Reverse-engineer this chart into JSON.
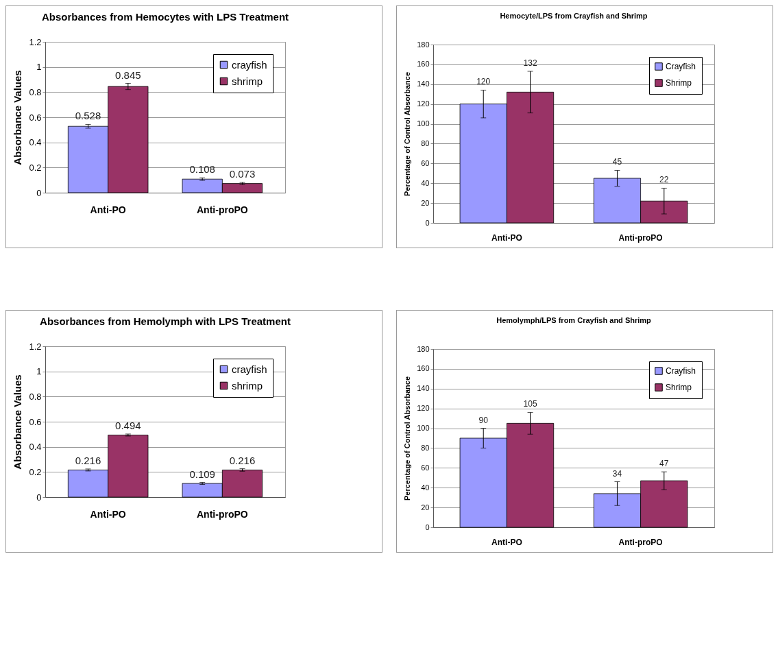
{
  "chart_data": [
    {
      "type": "bar",
      "title": "Absorbances from Hemocytes with LPS Treatment",
      "ylabel": "Absorbance Values",
      "categories": [
        "Anti-PO",
        "Anti-proPO"
      ],
      "series": [
        {
          "name": "crayfish",
          "color": "#9999ff",
          "values": [
            0.528,
            0.108
          ],
          "errors": [
            0.015,
            0.01
          ]
        },
        {
          "name": "shrimp",
          "color": "#993366",
          "values": [
            0.845,
            0.073
          ],
          "errors": [
            0.025,
            0.008
          ]
        }
      ],
      "ylim": [
        0,
        1.2
      ],
      "yticks": [
        0,
        0.2,
        0.4,
        0.6,
        0.8,
        1,
        1.2
      ],
      "grid": "y",
      "legend": "top right",
      "data_labels": true
    },
    {
      "type": "bar",
      "title": "Hemocyte/LPS from Crayfish and Shrimp",
      "ylabel": "Percentage of Control Absorbance",
      "categories": [
        "Anti-PO",
        "Anti-proPO"
      ],
      "series": [
        {
          "name": "Crayfish",
          "color": "#9999ff",
          "values": [
            120,
            45
          ],
          "errors": [
            14,
            8
          ]
        },
        {
          "name": "Shrimp",
          "color": "#993366",
          "values": [
            132,
            22
          ],
          "errors": [
            21,
            13
          ]
        }
      ],
      "ylim": [
        0,
        180
      ],
      "yticks": [
        0,
        20,
        40,
        60,
        80,
        100,
        120,
        140,
        160,
        180
      ],
      "grid": "y",
      "legend": "top right",
      "data_labels": true
    },
    {
      "type": "bar",
      "title": "Absorbances from Hemolymph with LPS Treatment",
      "ylabel": "Absorbance Values",
      "categories": [
        "Anti-PO",
        "Anti-proPO"
      ],
      "series": [
        {
          "name": "crayfish",
          "color": "#9999ff",
          "values": [
            0.216,
            0.109
          ],
          "errors": [
            0.008,
            0.008
          ]
        },
        {
          "name": "shrimp",
          "color": "#993366",
          "values": [
            0.494,
            0.216
          ],
          "errors": [
            0.008,
            0.01
          ]
        }
      ],
      "ylim": [
        0,
        1.2
      ],
      "yticks": [
        0,
        0.2,
        0.4,
        0.6,
        0.8,
        1,
        1.2
      ],
      "grid": "y",
      "legend": "top right",
      "data_labels": true
    },
    {
      "type": "bar",
      "title": "Hemolymph/LPS from Crayfish and Shrimp",
      "ylabel": "Percentage of Control Absorbance",
      "categories": [
        "Anti-PO",
        "Anti-proPO"
      ],
      "series": [
        {
          "name": "Crayfish",
          "color": "#9999ff",
          "values": [
            90,
            34
          ],
          "errors": [
            10,
            12
          ]
        },
        {
          "name": "Shrimp",
          "color": "#993366",
          "values": [
            105,
            47
          ],
          "errors": [
            11,
            9
          ]
        }
      ],
      "ylim": [
        0,
        180
      ],
      "yticks": [
        0,
        20,
        40,
        60,
        80,
        100,
        120,
        140,
        160,
        180
      ],
      "grid": "y",
      "legend": "top right",
      "data_labels": true
    }
  ]
}
